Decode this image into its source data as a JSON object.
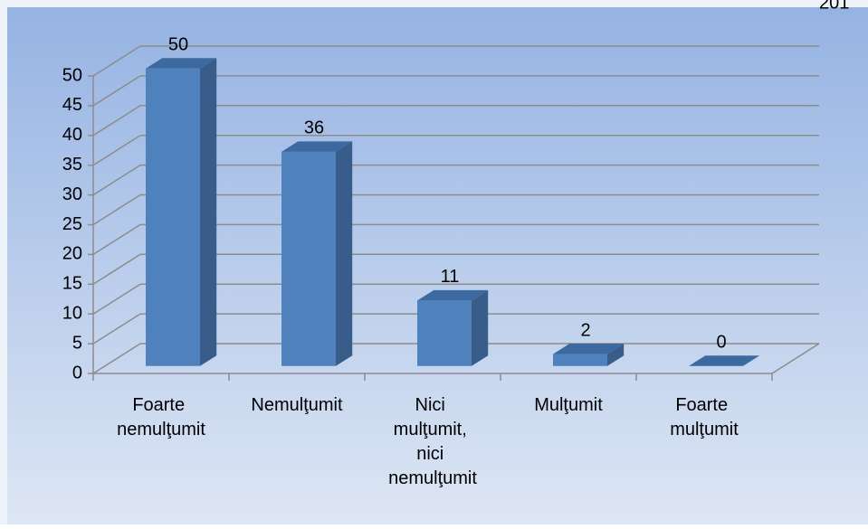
{
  "chart_data": {
    "type": "bar3d",
    "annotation": "201",
    "categories": [
      "Foarte nemulţumit",
      "Nemulţumit",
      "Nici mulţumit, nici nemulţumit",
      "Mulţumit",
      "Foarte mulţumit"
    ],
    "values": [
      50,
      36,
      11,
      2,
      0
    ],
    "color": "#4f81bd",
    "ylim": [
      0,
      50
    ],
    "yticks": [
      0,
      5,
      10,
      15,
      20,
      25,
      30,
      35,
      40,
      45,
      50
    ],
    "grid": true
  }
}
